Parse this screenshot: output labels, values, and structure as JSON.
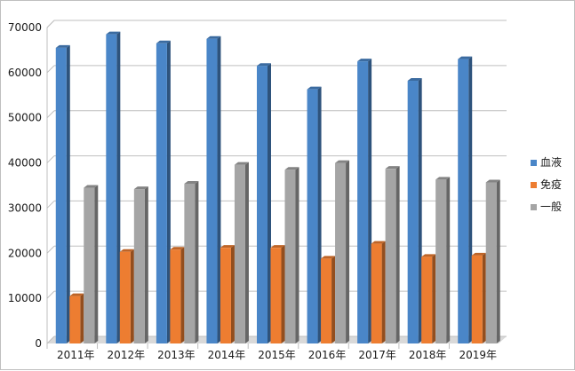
{
  "chart_data": {
    "type": "bar",
    "categories": [
      "2011年",
      "2012年",
      "2013年",
      "2014年",
      "2015年",
      "2016年",
      "2017年",
      "2018年",
      "2019年"
    ],
    "series": [
      {
        "name": "血液",
        "color": "#4a86c8",
        "values": [
          65500,
          68500,
          66500,
          67500,
          61500,
          56300,
          62500,
          58200,
          63000
        ]
      },
      {
        "name": "免疫",
        "color": "#ed7d31",
        "values": [
          10500,
          20300,
          20800,
          21200,
          21200,
          18800,
          22100,
          19200,
          19500
        ]
      },
      {
        "name": "一般",
        "color": "#a5a5a5",
        "values": [
          34500,
          34200,
          35400,
          39600,
          38500,
          40000,
          38700,
          36300,
          35700
        ]
      }
    ],
    "yticks": [
      "0",
      "10000",
      "20000",
      "30000",
      "40000",
      "50000",
      "60000",
      "70000"
    ],
    "ylim": [
      0,
      70000
    ],
    "grid": true,
    "legend_position": "right",
    "title": "",
    "xlabel": "",
    "ylabel": ""
  }
}
